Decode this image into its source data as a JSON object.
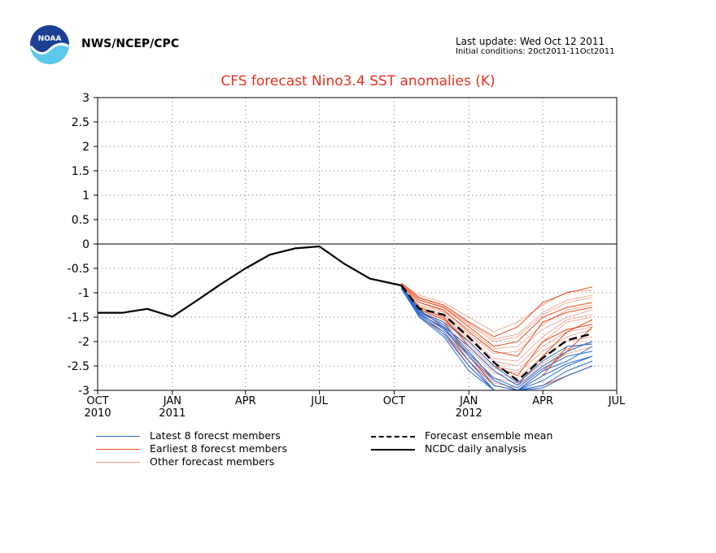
{
  "header": {
    "agency": "NWS/NCEP/CPC",
    "last_update": "Last update: Wed Oct 12 2011",
    "initial_conditions": "Initial conditions: 20ct2011-11Oct2011",
    "logo_text": "NOAA"
  },
  "colors": {
    "title": "#e8311f",
    "latest": "#2a6fd6",
    "earliest": "#e84a1a",
    "other": "#ef9a86",
    "analysis": "#000000",
    "mean": "#000000"
  },
  "chart_data": {
    "type": "line",
    "title": "CFS forecast Nino3.4 SST anomalies (K)",
    "ylim": [
      -3,
      3
    ],
    "yticks": [
      3,
      2.5,
      2,
      1.5,
      1,
      0.5,
      0,
      -0.5,
      -1,
      -1.5,
      -2,
      -2.5,
      -3
    ],
    "ytick_labels": [
      "3",
      "2.5",
      "2",
      "1.5",
      "1",
      "0.5",
      "0",
      "-0.5",
      "-1",
      "-1.5",
      "-2",
      "-2.5",
      "-3"
    ],
    "xlim": [
      "2010-10-01",
      "2012-07-01"
    ],
    "xticks": [
      {
        "date": "2010-10-01",
        "label": "OCT",
        "year": "2010"
      },
      {
        "date": "2011-01-01",
        "label": "JAN",
        "year": "2011"
      },
      {
        "date": "2011-04-01",
        "label": "APR",
        "year": ""
      },
      {
        "date": "2011-07-01",
        "label": "JUL",
        "year": ""
      },
      {
        "date": "2011-10-01",
        "label": "OCT",
        "year": ""
      },
      {
        "date": "2012-01-01",
        "label": "JAN",
        "year": "2012"
      },
      {
        "date": "2012-04-01",
        "label": "APR",
        "year": ""
      },
      {
        "date": "2012-07-01",
        "label": "JUL",
        "year": ""
      }
    ],
    "grid": true,
    "zero_line": true,
    "legend": {
      "placement": "bottom",
      "entries": [
        {
          "label": "Latest 8 forecst members",
          "key": "latest",
          "style": "thin"
        },
        {
          "label": "Earliest 8 forecst members",
          "key": "earliest",
          "style": "thin"
        },
        {
          "label": "Other forecast members",
          "key": "other",
          "style": "thin"
        },
        {
          "label": "Forecast ensemble mean",
          "key": "mean",
          "style": "dashed"
        },
        {
          "label": "NCDC daily analysis",
          "key": "analysis",
          "style": "thick"
        }
      ]
    },
    "series": [
      {
        "name": "NCDC daily analysis",
        "key": "analysis",
        "x": [
          "2010-10-01",
          "2010-11-01",
          "2010-12-01",
          "2011-01-01",
          "2011-02-01",
          "2011-03-01",
          "2011-04-01",
          "2011-05-01",
          "2011-06-01",
          "2011-07-01",
          "2011-08-01",
          "2011-09-01",
          "2011-10-10"
        ],
        "y": [
          -1.41,
          -1.41,
          -1.33,
          -1.49,
          -1.15,
          -0.83,
          -0.5,
          -0.22,
          -0.09,
          -0.05,
          -0.41,
          -0.71,
          -0.85
        ]
      },
      {
        "name": "Forecast ensemble mean",
        "key": "mean",
        "x": [
          "2011-10-10",
          "2011-11-01",
          "2011-12-01",
          "2012-01-01",
          "2012-02-01",
          "2012-03-01",
          "2012-04-01",
          "2012-05-01",
          "2012-06-01"
        ],
        "y": [
          -0.85,
          -1.33,
          -1.45,
          -1.91,
          -2.43,
          -2.8,
          -2.34,
          -1.97,
          -1.84
        ]
      },
      {
        "name": "Latest 8 forecst members",
        "key": "latest",
        "x": [
          "2011-10-10",
          "2011-11-01",
          "2011-12-01",
          "2012-01-01",
          "2012-02-01",
          "2012-03-01",
          "2012-04-01",
          "2012-05-01",
          "2012-06-01"
        ],
        "members": [
          [
            -0.9,
            -1.45,
            -1.8,
            -2.4,
            -3.0,
            -3.0,
            -2.8,
            -2.5,
            -2.3
          ],
          [
            -0.88,
            -1.4,
            -1.65,
            -2.2,
            -2.8,
            -3.0,
            -2.6,
            -2.4,
            -2.1
          ],
          [
            -0.92,
            -1.5,
            -1.9,
            -2.6,
            -3.0,
            -3.0,
            -2.9,
            -2.6,
            -2.4
          ],
          [
            -0.86,
            -1.35,
            -1.7,
            -2.1,
            -2.6,
            -2.9,
            -2.5,
            -2.2,
            -2.0
          ],
          [
            -0.9,
            -1.42,
            -1.75,
            -2.3,
            -2.9,
            -3.0,
            -2.7,
            -2.45,
            -2.3
          ],
          [
            -0.87,
            -1.38,
            -1.6,
            -2.0,
            -2.5,
            -2.85,
            -2.4,
            -2.1,
            -2.05
          ],
          [
            -0.91,
            -1.48,
            -1.85,
            -2.5,
            -3.0,
            -3.0,
            -2.95,
            -2.7,
            -2.5
          ],
          [
            -0.89,
            -1.44,
            -1.72,
            -2.25,
            -2.75,
            -2.95,
            -2.55,
            -2.3,
            -2.2
          ]
        ]
      },
      {
        "name": "Earliest 8 forecst members",
        "key": "earliest",
        "x": [
          "2011-10-10",
          "2011-11-01",
          "2011-12-01",
          "2012-01-01",
          "2012-02-01",
          "2012-03-01",
          "2012-04-01",
          "2012-05-01",
          "2012-06-01"
        ],
        "members": [
          [
            -0.8,
            -1.1,
            -1.25,
            -1.6,
            -1.9,
            -1.7,
            -1.2,
            -1.0,
            -0.88
          ],
          [
            -0.85,
            -1.2,
            -1.35,
            -1.8,
            -2.2,
            -2.3,
            -1.6,
            -1.4,
            -1.3
          ],
          [
            -0.9,
            -1.4,
            -1.6,
            -2.3,
            -2.8,
            -3.0,
            -2.6,
            -2.2,
            -1.7
          ],
          [
            -0.88,
            -1.3,
            -1.5,
            -2.1,
            -2.6,
            -2.9,
            -2.3,
            -1.8,
            -1.55
          ],
          [
            -0.92,
            -1.5,
            -1.8,
            -2.5,
            -3.0,
            -3.0,
            -2.9,
            -2.7,
            -2.5
          ],
          [
            -0.83,
            -1.15,
            -1.3,
            -1.7,
            -2.1,
            -2.0,
            -1.5,
            -1.3,
            -1.2
          ],
          [
            -0.87,
            -1.35,
            -1.55,
            -2.0,
            -2.5,
            -2.7,
            -2.0,
            -1.75,
            -1.65
          ],
          [
            -0.89,
            -1.45,
            -1.7,
            -2.4,
            -2.9,
            -3.0,
            -2.7,
            -2.1,
            -2.05
          ]
        ]
      },
      {
        "name": "Other forecast members",
        "key": "other",
        "x": [
          "2011-10-10",
          "2011-11-01",
          "2011-12-01",
          "2012-01-01",
          "2012-02-01",
          "2012-03-01",
          "2012-04-01",
          "2012-05-01",
          "2012-06-01"
        ],
        "members": [
          [
            -0.82,
            -1.05,
            -1.2,
            -1.5,
            -1.8,
            -1.6,
            -1.25,
            -0.98,
            -0.95
          ],
          [
            -0.84,
            -1.15,
            -1.3,
            -1.65,
            -2.0,
            -1.9,
            -1.45,
            -1.2,
            -1.1
          ],
          [
            -0.86,
            -1.25,
            -1.4,
            -1.85,
            -2.25,
            -2.2,
            -1.75,
            -1.5,
            -1.35
          ],
          [
            -0.87,
            -1.3,
            -1.5,
            -1.95,
            -2.4,
            -2.5,
            -2.0,
            -1.6,
            -1.5
          ],
          [
            -0.88,
            -1.35,
            -1.55,
            -2.05,
            -2.55,
            -2.65,
            -2.2,
            -1.9,
            -1.75
          ],
          [
            -0.89,
            -1.4,
            -1.6,
            -2.15,
            -2.65,
            -2.75,
            -2.3,
            -2.0,
            -1.9
          ],
          [
            -0.9,
            -1.42,
            -1.65,
            -2.25,
            -2.75,
            -2.85,
            -2.45,
            -2.15,
            -2.0
          ],
          [
            -0.85,
            -1.2,
            -1.38,
            -1.75,
            -2.15,
            -2.1,
            -1.65,
            -1.35,
            -1.25
          ],
          [
            -0.83,
            -1.12,
            -1.28,
            -1.62,
            -1.95,
            -1.85,
            -1.4,
            -1.15,
            -1.05
          ],
          [
            -0.9,
            -1.45,
            -1.7,
            -2.3,
            -2.85,
            -2.95,
            -2.5,
            -2.25,
            -2.1
          ],
          [
            -0.86,
            -1.28,
            -1.45,
            -1.9,
            -2.35,
            -2.4,
            -1.9,
            -1.55,
            -1.45
          ],
          [
            -0.88,
            -1.33,
            -1.52,
            -2.0,
            -2.5,
            -2.6,
            -2.1,
            -1.8,
            -1.7
          ]
        ]
      }
    ]
  }
}
